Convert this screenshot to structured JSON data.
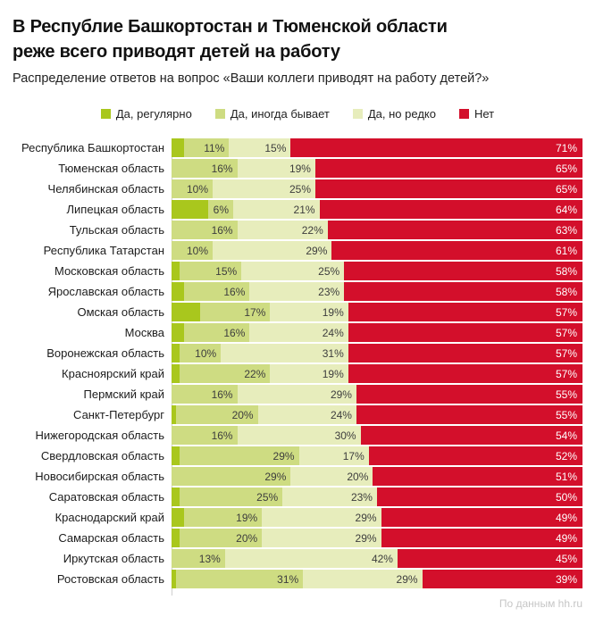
{
  "header": {
    "title_lines": [
      "В Республие Башкортостан и Тюменской области",
      "реже всего приводят детей на работу"
    ],
    "subtitle": "Распределение ответов на вопрос «Ваши коллеги приводят на работу детей?»"
  },
  "footer": {
    "source": "По данным hh.ru"
  },
  "colors": {
    "regular_green": "#a9c71d",
    "sometimes_green": "#cedc82",
    "rarely_green": "#e7edbc",
    "no_red": "#d30f2b",
    "segment_label_dark": "#3d3d3d",
    "segment_label_light": "#ffffff",
    "axis_line": "#cfcfcf",
    "source_gray": "#c6c6c6"
  },
  "chart_data": {
    "type": "bar",
    "orientation": "horizontal-stacked",
    "title": "В Республие Башкортостан и Тюменской области реже всего приводят детей на работу",
    "subtitle": "Распределение ответов на вопрос «Ваши коллеги приводят на работу детей?»",
    "unit": "%",
    "xlim": [
      0,
      100
    ],
    "grid": false,
    "legend_position": "top-center",
    "categories": [
      "Республика Башкортостан",
      "Тюменская область",
      "Челябинская область",
      "Липецкая область",
      "Тульская область",
      "Республика Татарстан",
      "Московская область",
      "Ярославская область",
      "Омская область",
      "Москва",
      "Воронежская область",
      "Красноярский край",
      "Пермский край",
      "Санкт-Петербург",
      "Нижегородская область",
      "Свердловская область",
      "Новосибирская область",
      "Саратовская область",
      "Краснодарский край",
      "Самарская область",
      "Иркутская область",
      "Ростовская область"
    ],
    "series": [
      {
        "name": "Да, регулярно",
        "color": "#a9c71d",
        "labels_shown": false,
        "values": [
          3,
          0,
          0,
          9,
          0,
          0,
          2,
          3,
          7,
          3,
          2,
          2,
          0,
          1,
          0,
          2,
          0,
          2,
          3,
          2,
          0,
          1
        ]
      },
      {
        "name": "Да, иногда бывает",
        "color": "#cedc82",
        "labels_shown": true,
        "values": [
          11,
          16,
          10,
          6,
          16,
          10,
          15,
          16,
          17,
          16,
          10,
          22,
          16,
          20,
          16,
          29,
          29,
          25,
          19,
          20,
          13,
          31
        ]
      },
      {
        "name": "Да, но редко",
        "color": "#e7edbc",
        "labels_shown": true,
        "values": [
          15,
          19,
          25,
          21,
          22,
          29,
          25,
          23,
          19,
          24,
          31,
          19,
          29,
          24,
          30,
          17,
          20,
          23,
          29,
          29,
          42,
          29
        ]
      },
      {
        "name": "Нет",
        "color": "#d30f2b",
        "labels_shown": true,
        "values": [
          71,
          65,
          65,
          64,
          63,
          61,
          58,
          58,
          57,
          57,
          57,
          57,
          55,
          55,
          54,
          52,
          51,
          50,
          49,
          49,
          45,
          39
        ]
      }
    ],
    "source": "По данным hh.ru"
  }
}
